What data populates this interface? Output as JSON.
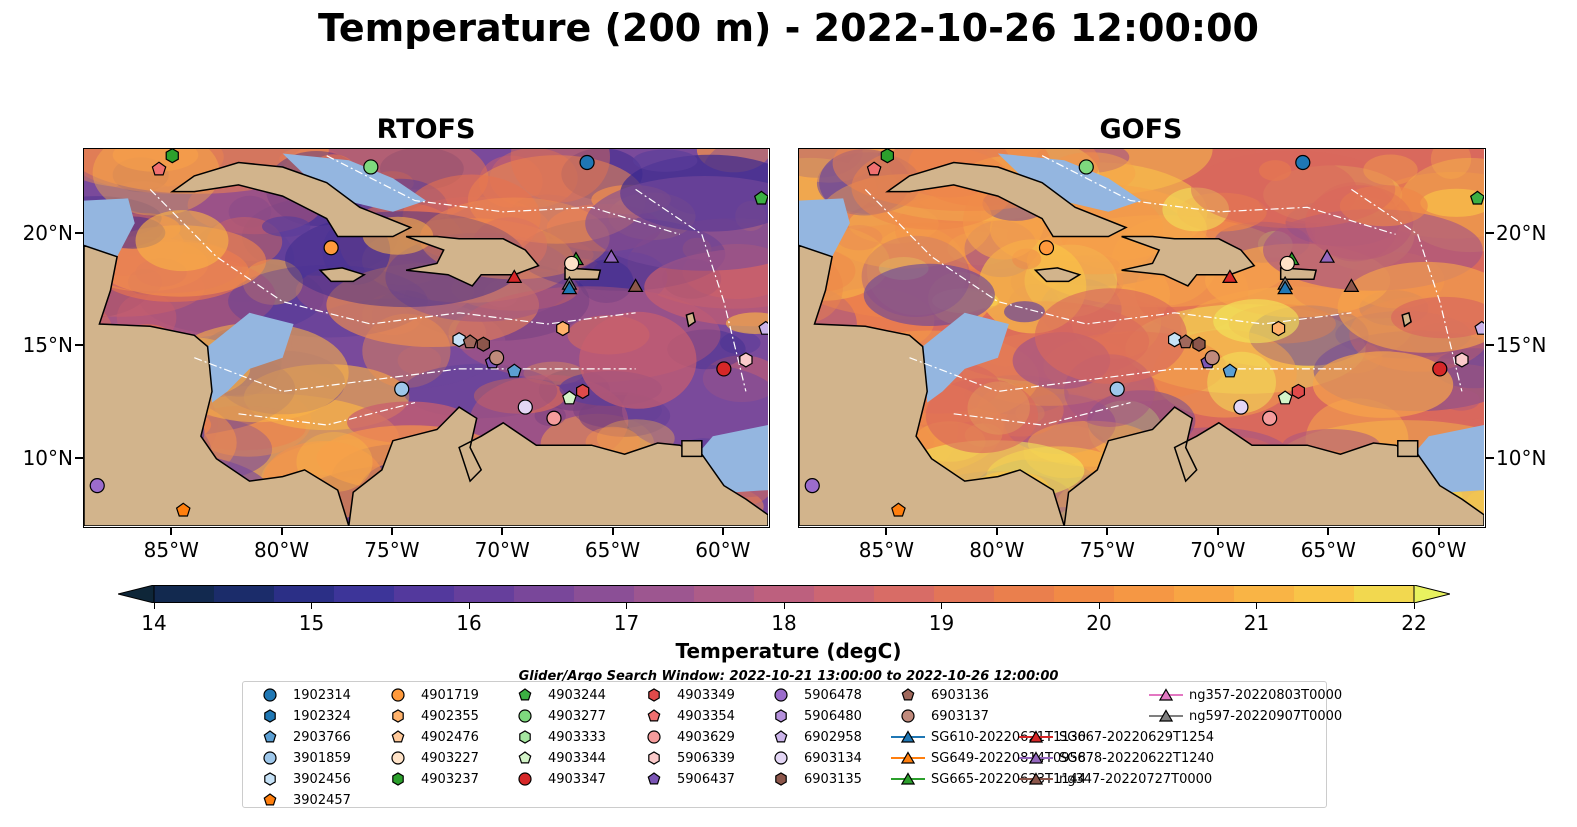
{
  "title": "Temperature (200 m) - 2022-10-26 12:00:00",
  "panels": [
    {
      "title": "RTOFS",
      "y_labels_side": "left",
      "palette": [
        "#3a2a8e",
        "#5b3d9a",
        "#7a4a9b",
        "#c85e6e",
        "#e7734f",
        "#f6924a",
        "#f9b347"
      ]
    },
    {
      "title": "GOFS",
      "y_labels_side": "right",
      "palette": [
        "#6b4699",
        "#a65584",
        "#d9695d",
        "#ef8549",
        "#f7a44a",
        "#fac447",
        "#f2e85a"
      ]
    }
  ],
  "x_ticks": [
    "85°W",
    "80°W",
    "75°W",
    "70°W",
    "65°W",
    "60°W"
  ],
  "y_ticks": [
    "20°N",
    "15°N",
    "10°N"
  ],
  "colorbar": {
    "label": "Temperature (degC)",
    "ticks": [
      "14",
      "15",
      "16",
      "17",
      "18",
      "19",
      "20",
      "21",
      "22"
    ],
    "colors": [
      "#0e2638",
      "#12294f",
      "#1b2c6a",
      "#2b2f86",
      "#3d3599",
      "#53399d",
      "#663f9c",
      "#79479a",
      "#8b4f96",
      "#9d5690",
      "#ad5c88",
      "#bd607e",
      "#cc6673",
      "#d86c66",
      "#e27558",
      "#ea7f4d",
      "#f18a46",
      "#f59744",
      "#f8a544",
      "#f9b445",
      "#f9c448",
      "#f2d84f",
      "#e8f25f"
    ]
  },
  "search_window": "Glider/Argo Search Window: 2022-10-21 13:00:00 to 2022-10-26 12:00:00",
  "legend": [
    {
      "label": "1902314",
      "shape": "circle",
      "color": "#1f77b4"
    },
    {
      "label": "1902324",
      "shape": "hexagon",
      "color": "#1f77b4"
    },
    {
      "label": "2903766",
      "shape": "pentagon",
      "color": "#5b9fd3"
    },
    {
      "label": "3901859",
      "shape": "circle",
      "color": "#9ec7ea"
    },
    {
      "label": "3902456",
      "shape": "hexagon",
      "color": "#c6e2f7"
    },
    {
      "label": "3902457",
      "shape": "pentagon",
      "color": "#ff7f0e"
    },
    {
      "label": "4901719",
      "shape": "circle",
      "color": "#ff9a3c"
    },
    {
      "label": "4902355",
      "shape": "hexagon",
      "color": "#ffb26b"
    },
    {
      "label": "4902476",
      "shape": "pentagon",
      "color": "#ffc99a"
    },
    {
      "label": "4903227",
      "shape": "circle",
      "color": "#ffe3c8"
    },
    {
      "label": "4903237",
      "shape": "hexagon",
      "color": "#2ca02c"
    },
    {
      "label": "4903244",
      "shape": "pentagon",
      "color": "#3cb043"
    },
    {
      "label": "4903277",
      "shape": "circle",
      "color": "#7ed97e"
    },
    {
      "label": "4903333",
      "shape": "hexagon",
      "color": "#a5e6a0"
    },
    {
      "label": "4903344",
      "shape": "pentagon",
      "color": "#d4f5c9"
    },
    {
      "label": "4903347",
      "shape": "circle",
      "color": "#d62728"
    },
    {
      "label": "4903349",
      "shape": "hexagon",
      "color": "#e04a4a"
    },
    {
      "label": "4903354",
      "shape": "pentagon",
      "color": "#f07070"
    },
    {
      "label": "4903629",
      "shape": "circle",
      "color": "#f59c9c"
    },
    {
      "label": "5906339",
      "shape": "hexagon",
      "color": "#fbcaca"
    },
    {
      "label": "5906437",
      "shape": "pentagon",
      "color": "#7b55b5"
    },
    {
      "label": "5906478",
      "shape": "circle",
      "color": "#9b6ccc"
    },
    {
      "label": "5906480",
      "shape": "hexagon",
      "color": "#b591dc"
    },
    {
      "label": "6902958",
      "shape": "pentagon",
      "color": "#cbb4ea"
    },
    {
      "label": "6903134",
      "shape": "circle",
      "color": "#e3d6f5"
    },
    {
      "label": "6903135",
      "shape": "hexagon",
      "color": "#8c564b"
    },
    {
      "label": "6903136",
      "shape": "pentagon",
      "color": "#a0685c"
    },
    {
      "label": "6903137",
      "shape": "circle",
      "color": "#c08a7c"
    },
    {
      "label": "SG610-20220621T1130",
      "shape": "triangle-line",
      "color": "#1f77b4"
    },
    {
      "label": "SG649-20220814T0958",
      "shape": "triangle-line",
      "color": "#ff7f0e"
    },
    {
      "label": "SG665-20220623T1144",
      "shape": "triangle-line",
      "color": "#2ca02c"
    },
    {
      "label": "SG667-20220629T1254",
      "shape": "triangle-line",
      "color": "#d62728"
    },
    {
      "label": "SG678-20220622T1240",
      "shape": "triangle-line",
      "color": "#9467bd"
    },
    {
      "label": "ng347-20220727T0000",
      "shape": "triangle-line",
      "color": "#8c564b"
    },
    {
      "label": "ng357-20220803T0000",
      "shape": "triangle-line",
      "color": "#e377c2"
    },
    {
      "label": "ng597-20220907T0000",
      "shape": "triangle-line",
      "color": "#7f7f7f"
    }
  ],
  "map_markers": [
    {
      "label": "1902314",
      "lon": -66.2,
      "lat": 23.2
    },
    {
      "label": "3901859",
      "lon": -74.6,
      "lat": 13.1
    },
    {
      "label": "3902456",
      "lon": -72.0,
      "lat": 15.3
    },
    {
      "label": "3902457",
      "lon": -84.5,
      "lat": 7.7
    },
    {
      "label": "4901719",
      "lon": -77.8,
      "lat": 19.4
    },
    {
      "label": "2903766",
      "lon": -69.5,
      "lat": 13.9
    },
    {
      "label": "4903237",
      "lon": -85.0,
      "lat": 23.5
    },
    {
      "label": "4903244",
      "lon": -58.3,
      "lat": 21.6
    },
    {
      "label": "4903277",
      "lon": -76.0,
      "lat": 23.0
    },
    {
      "label": "4903344",
      "lon": -67.0,
      "lat": 12.7
    },
    {
      "label": "4903347",
      "lon": -60.0,
      "lat": 14.0
    },
    {
      "label": "4903349",
      "lon": -66.4,
      "lat": 13.0
    },
    {
      "label": "4903354",
      "lon": -85.6,
      "lat": 22.9
    },
    {
      "label": "4903629",
      "lon": -67.7,
      "lat": 11.8
    },
    {
      "label": "5906339",
      "lon": -59.0,
      "lat": 14.4
    },
    {
      "label": "5906478",
      "lon": -88.4,
      "lat": 8.8
    },
    {
      "label": "5906437",
      "lon": -70.5,
      "lat": 14.3
    },
    {
      "label": "6902958",
      "lon": -58.1,
      "lat": 15.8
    },
    {
      "label": "6903134",
      "lon": -69.0,
      "lat": 12.3
    },
    {
      "label": "6903135",
      "lon": -70.9,
      "lat": 15.1
    },
    {
      "label": "6903136",
      "lon": -71.5,
      "lat": 15.2
    },
    {
      "label": "6903137",
      "lon": -70.3,
      "lat": 14.5
    },
    {
      "label": "4902355",
      "lon": -67.3,
      "lat": 15.8
    },
    {
      "label": "SG667-20220629T1254",
      "lon": -69.5,
      "lat": 18.1
    },
    {
      "label": "SG665-20220623T1144",
      "lon": -66.7,
      "lat": 18.9
    },
    {
      "label": "SG678-20220622T1240",
      "lon": -65.1,
      "lat": 19.0
    },
    {
      "label": "ng347-20220727T0000",
      "lon": -64.0,
      "lat": 17.7
    },
    {
      "label": "ng597-20220907T0000",
      "lon": -67.0,
      "lat": 17.8
    },
    {
      "label": "SG610-20220621T1130",
      "lon": -67.0,
      "lat": 17.6
    },
    {
      "label": "4903227",
      "lon": -66.9,
      "lat": 18.7
    }
  ]
}
